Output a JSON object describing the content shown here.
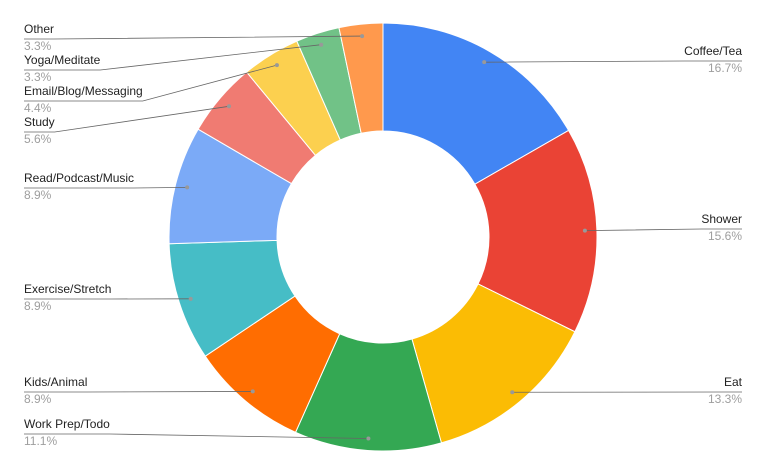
{
  "chart_data": {
    "type": "donut",
    "categories": [
      "Coffee/Tea",
      "Shower",
      "Eat",
      "Work Prep/Todo",
      "Kids/Animal",
      "Exercise/Stretch",
      "Read/Podcast/Music",
      "Study",
      "Email/Blog/Messaging",
      "Yoga/Meditate",
      "Other"
    ],
    "values": [
      16.7,
      15.6,
      13.3,
      11.1,
      8.9,
      8.9,
      8.9,
      5.6,
      4.4,
      3.3,
      3.3
    ],
    "value_labels": [
      "16.7%",
      "15.6%",
      "13.3%",
      "11.1%",
      "8.9%",
      "8.9%",
      "8.9%",
      "5.6%",
      "4.4%",
      "3.3%",
      "3.3%"
    ],
    "colors": [
      "#4285f4",
      "#ea4335",
      "#fbbc04",
      "#34a853",
      "#ff6d01",
      "#46bdc6",
      "#7baaf7",
      "#f07b72",
      "#fcd04f",
      "#71c287",
      "#ff994d"
    ]
  }
}
